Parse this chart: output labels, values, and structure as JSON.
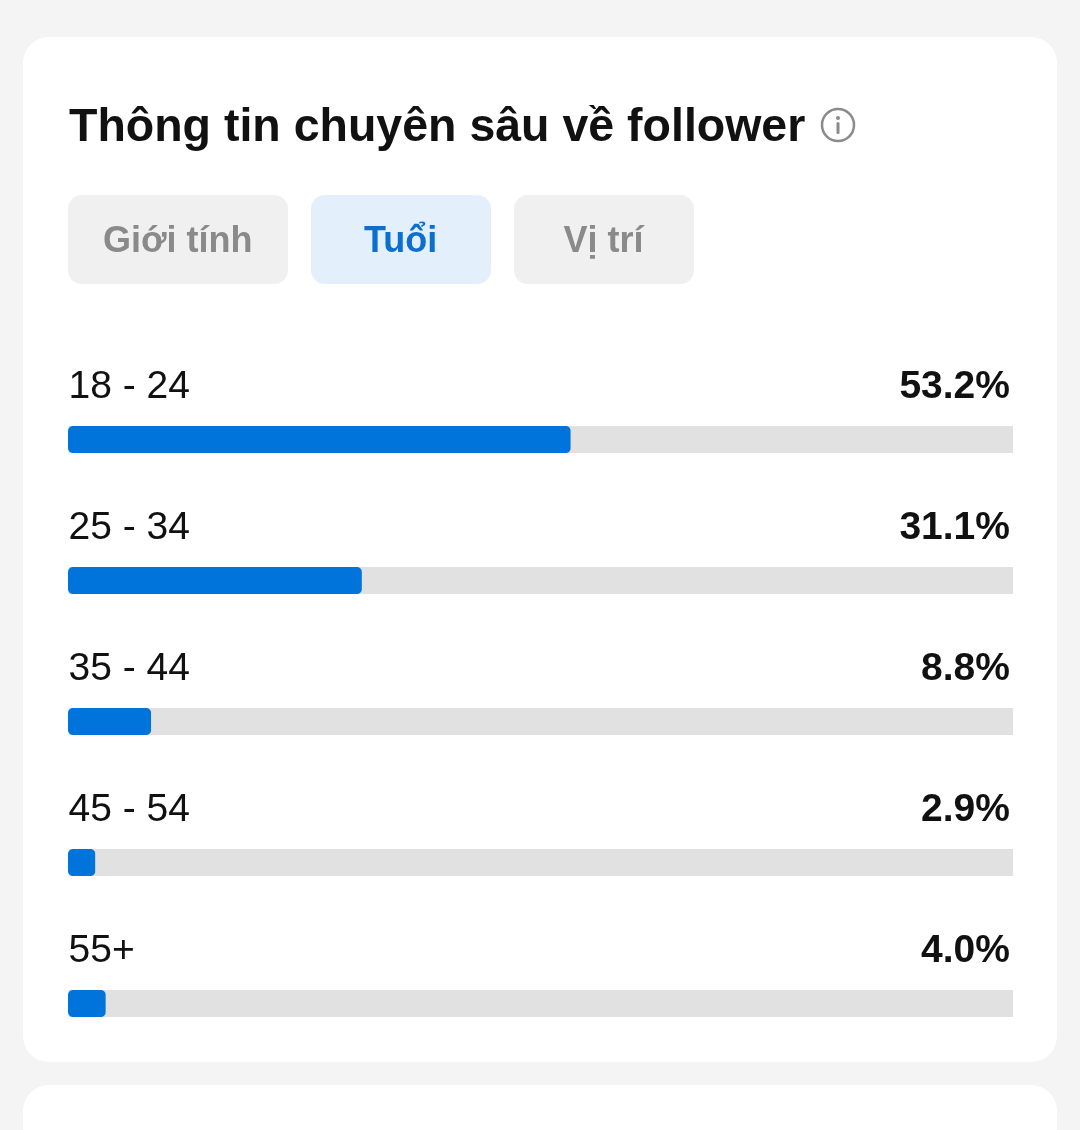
{
  "chart_data": {
    "type": "bar",
    "orientation": "horizontal",
    "title": "Thông tin chuyên sâu về follower",
    "annotations": [
      "Giới tính",
      "Tuổi",
      "Vị trí"
    ],
    "categories": [
      "18 - 24",
      "25 - 34",
      "35 - 44",
      "45 - 54",
      "55+"
    ],
    "values": [
      53.2,
      31.1,
      8.8,
      2.9,
      4.0
    ],
    "value_labels": [
      "53.2%",
      "31.1%",
      "8.8%",
      "2.9%",
      "4.0%"
    ],
    "color": "#0074db",
    "xlim": [
      0,
      100
    ],
    "grid": "y",
    "tick_labels": "y"
  }
}
